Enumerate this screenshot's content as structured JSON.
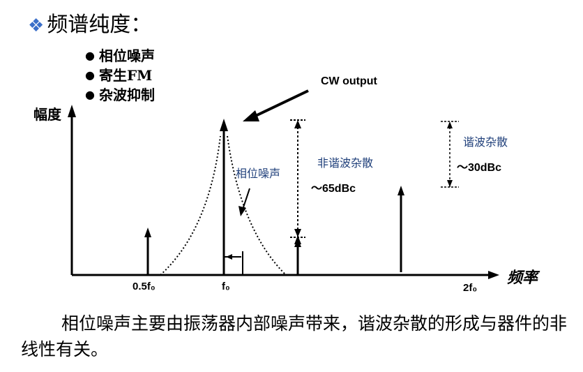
{
  "title": "频谱纯度：",
  "bullets": [
    "相位噪声",
    "寄生FM",
    "杂波抑制"
  ],
  "cw_label": "CW output",
  "y_axis_label": "幅度",
  "x_axis_label": "频率",
  "phase_noise_label": "相位噪声",
  "nonharmonic_label": "非谐波杂散",
  "harmonic_label": "谐波杂散",
  "nonharmonic_level": "～65dBc",
  "harmonic_level": "～30dBc",
  "x_ticks": [
    "0.5f₀",
    "f₀",
    "2f₀"
  ],
  "body_text": "相位噪声主要由振荡器内部噪声带来，谐波杂散的形成与器件的非线性有关。",
  "colors": {
    "diamond": "#3b6fc9",
    "annotation_blue": "#1f3f7a"
  }
}
